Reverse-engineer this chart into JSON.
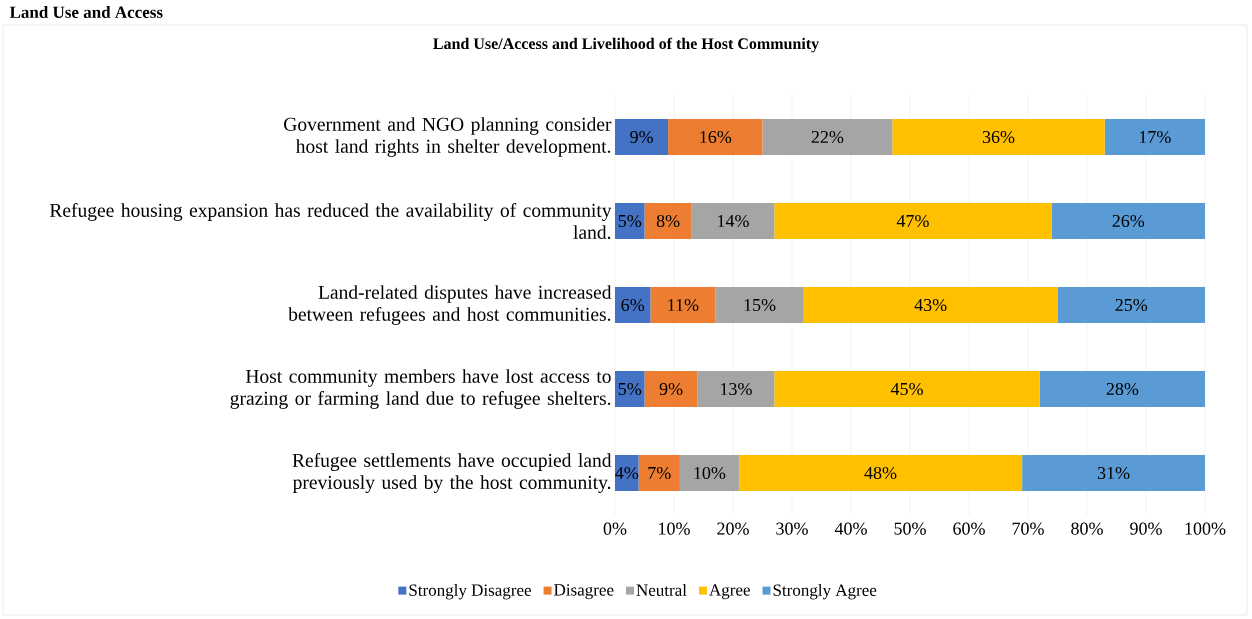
{
  "chart_data": {
    "type": "bar",
    "orientation": "horizontal",
    "stacked": true,
    "title": "Land Use/Access and Livelihood of the Host Community",
    "annotations": [
      "Land Use and Access"
    ],
    "categories": [
      "Government and NGO planning consider host land rights in shelter development.",
      "Refugee housing expansion has reduced the availability of community land.",
      "Land-related disputes have increased between refugees and host communities.",
      "Host community members have lost access to grazing or farming land due to refugee shelters.",
      "Refugee settlements have occupied land previously used by the host community."
    ],
    "series": [
      {
        "name": "Strongly Disagree",
        "color": "#4472c4",
        "values": [
          9,
          5,
          6,
          5,
          4
        ],
        "value_labels": [
          "9%",
          "5%",
          "6%",
          "5%",
          "4%"
        ]
      },
      {
        "name": "Disagree",
        "color": "#ed7d31",
        "values": [
          16,
          8,
          11,
          9,
          7
        ],
        "value_labels": [
          "16%",
          "8%",
          "11%",
          "9%",
          "7%"
        ]
      },
      {
        "name": "Neutral",
        "color": "#a5a5a5",
        "values": [
          22,
          14,
          15,
          13,
          10
        ],
        "value_labels": [
          "22%",
          "14%",
          "15%",
          "13%",
          "10%"
        ]
      },
      {
        "name": "Agree",
        "color": "#ffc000",
        "values": [
          36,
          47,
          43,
          45,
          48
        ],
        "value_labels": [
          "36%",
          "47%",
          "43%",
          "45%",
          "48%"
        ]
      },
      {
        "name": "Strongly Agree",
        "color": "#5b9bd5",
        "values": [
          17,
          26,
          25,
          28,
          31
        ],
        "value_labels": [
          "17%",
          "26%",
          "25%",
          "28%",
          "31%"
        ]
      }
    ],
    "xlim": [
      0,
      100
    ],
    "xticks": [
      {
        "value": 0,
        "label": "0%"
      },
      {
        "value": 10,
        "label": "10%"
      },
      {
        "value": 20,
        "label": "20%"
      },
      {
        "value": 30,
        "label": "30%"
      },
      {
        "value": 40,
        "label": "40%"
      },
      {
        "value": 50,
        "label": "50%"
      },
      {
        "value": 60,
        "label": "60%"
      },
      {
        "value": 70,
        "label": "70%"
      },
      {
        "value": 80,
        "label": "80%"
      },
      {
        "value": 90,
        "label": "90%"
      },
      {
        "value": 100,
        "label": "100%"
      }
    ],
    "grid": "x",
    "legend": "bottom"
  }
}
